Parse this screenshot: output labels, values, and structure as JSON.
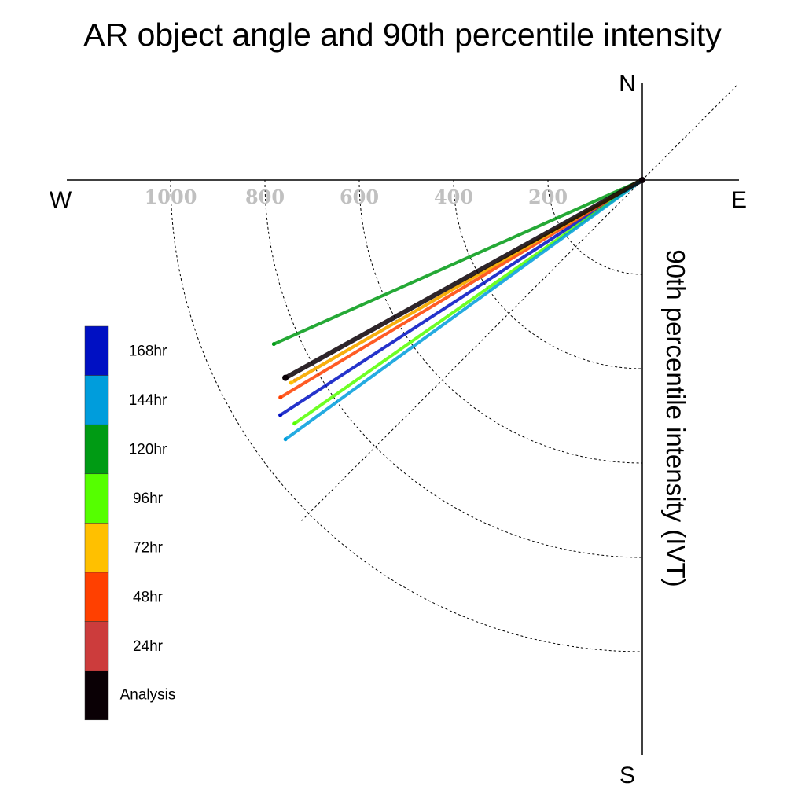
{
  "chart_data": {
    "type": "line",
    "title": "AR object angle and 90th percentile intensity",
    "ylabel": "90th percentile intensity (IVT)",
    "compass": {
      "north": "N",
      "south": "S",
      "east": "E",
      "west": "W"
    },
    "radial_ticks": [
      200,
      400,
      600,
      800,
      1000
    ],
    "radial_tick_labels": [
      "200",
      "400",
      "600",
      "800",
      "1000"
    ],
    "radial_range": [
      0,
      1000
    ],
    "grid": "dashed arcs every 200 with diagonal reference lines",
    "legend_placement": "left",
    "series": [
      {
        "name": "120hr",
        "color": "#009b14",
        "angle_deg": 204,
        "intensity": 855
      },
      {
        "name": "168hr",
        "color": "#0010c3",
        "angle_deg": 213,
        "intensity": 915
      },
      {
        "name": "48hr",
        "color": "#ff4000",
        "angle_deg": 211,
        "intensity": 895
      },
      {
        "name": "24hr",
        "color": "#cc3c3c",
        "angle_deg": 210,
        "intensity": 850
      },
      {
        "name": "72hr",
        "color": "#ffc000",
        "angle_deg": 210,
        "intensity": 860
      },
      {
        "name": "96hr",
        "color": "#55ff00",
        "angle_deg": 215,
        "intensity": 900
      },
      {
        "name": "144hr",
        "color": "#009ddc",
        "angle_deg": 216,
        "intensity": 935
      },
      {
        "name": "Analysis",
        "color": "#0a0005",
        "angle_deg": 209,
        "intensity": 865
      }
    ],
    "legend": [
      {
        "label": "168hr",
        "color": "#0010c3"
      },
      {
        "label": "144hr",
        "color": "#009ddc"
      },
      {
        "label": "120hr",
        "color": "#009b14"
      },
      {
        "label": "96hr",
        "color": "#55ff00"
      },
      {
        "label": "72hr",
        "color": "#ffc000"
      },
      {
        "label": "48hr",
        "color": "#ff4000"
      },
      {
        "label": "24hr",
        "color": "#cc3c3c"
      },
      {
        "label": "Analysis",
        "color": "#0a0005"
      }
    ]
  }
}
